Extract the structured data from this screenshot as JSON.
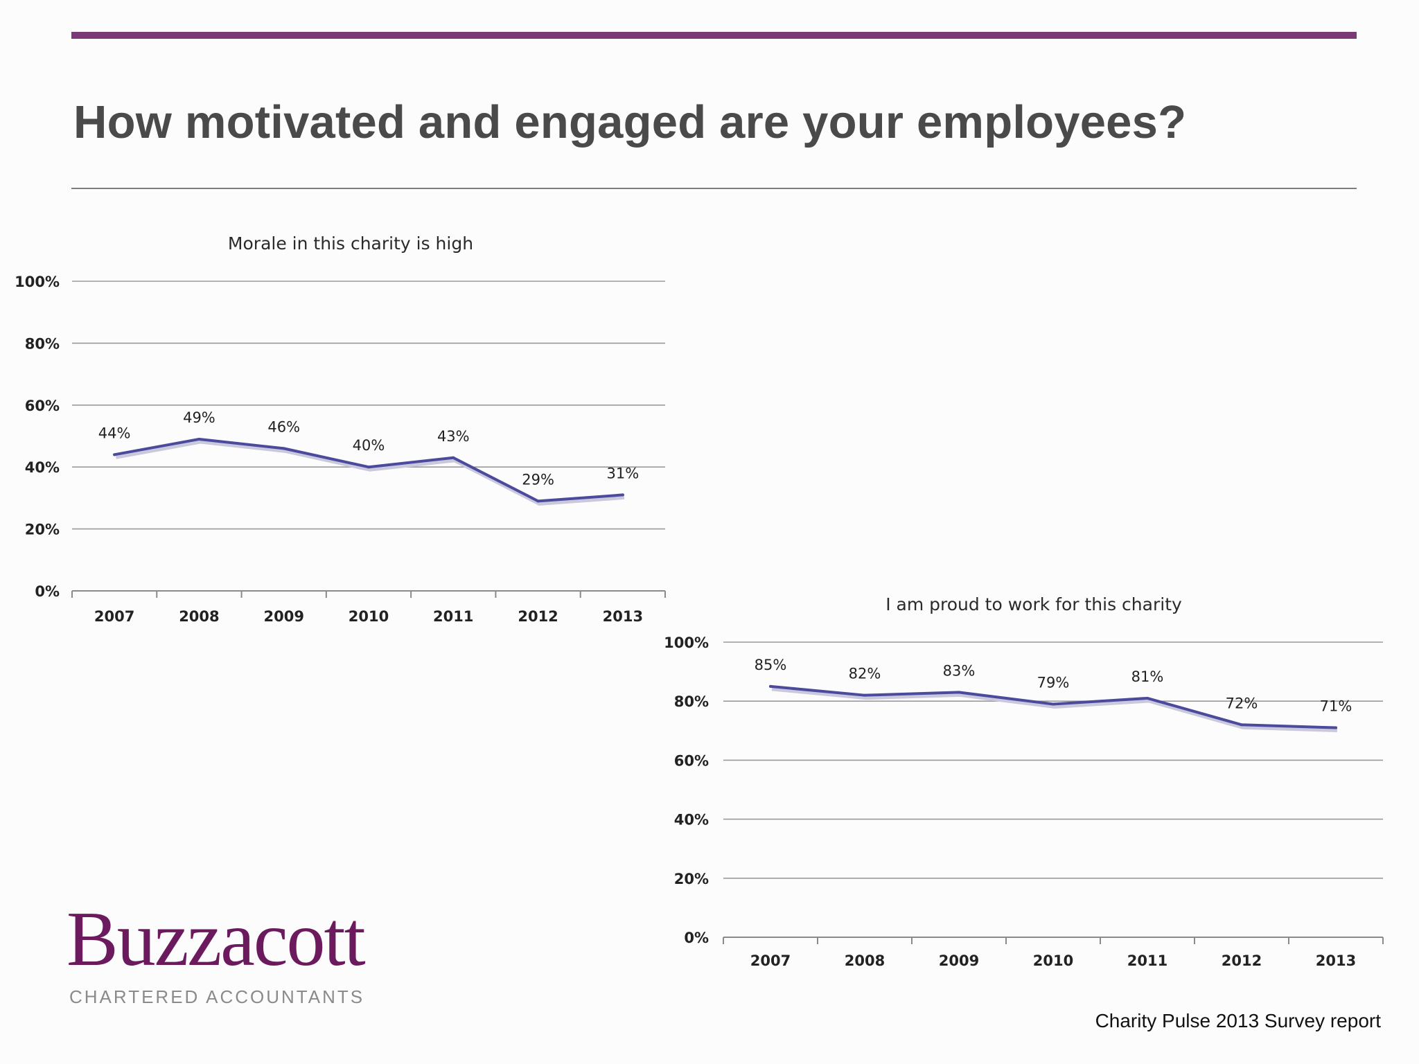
{
  "page": {
    "title": "How motivated and engaged are your employees?",
    "footer": "Charity Pulse 2013 Survey report",
    "logo": {
      "name": "Buzzacott",
      "tagline": "CHARTERED ACCOUNTANTS"
    },
    "colors": {
      "accent_bar": "#7a3a78",
      "series_line": "#4b4a9c",
      "logo": "#6b1a5e",
      "gridline": "#9a9a9a"
    }
  },
  "chart_data": [
    {
      "type": "line",
      "title": "Morale in this charity is high",
      "categories": [
        "2007",
        "2008",
        "2009",
        "2010",
        "2011",
        "2012",
        "2013"
      ],
      "values": [
        44,
        49,
        46,
        40,
        43,
        29,
        31
      ],
      "data_labels": [
        "44%",
        "49%",
        "46%",
        "40%",
        "43%",
        "29%",
        "31%"
      ],
      "yticks": [
        "0%",
        "20%",
        "40%",
        "60%",
        "80%",
        "100%"
      ],
      "ylim": [
        0,
        100
      ],
      "grid": true,
      "legend": "none"
    },
    {
      "type": "line",
      "title": "I am proud to work for this charity",
      "categories": [
        "2007",
        "2008",
        "2009",
        "2010",
        "2011",
        "2012",
        "2013"
      ],
      "values": [
        85,
        82,
        83,
        79,
        81,
        72,
        71
      ],
      "data_labels": [
        "85%",
        "82%",
        "83%",
        "79%",
        "81%",
        "72%",
        "71%"
      ],
      "yticks": [
        "0%",
        "20%",
        "40%",
        "60%",
        "80%",
        "100%"
      ],
      "ylim": [
        0,
        100
      ],
      "grid": true,
      "legend": "none"
    }
  ]
}
